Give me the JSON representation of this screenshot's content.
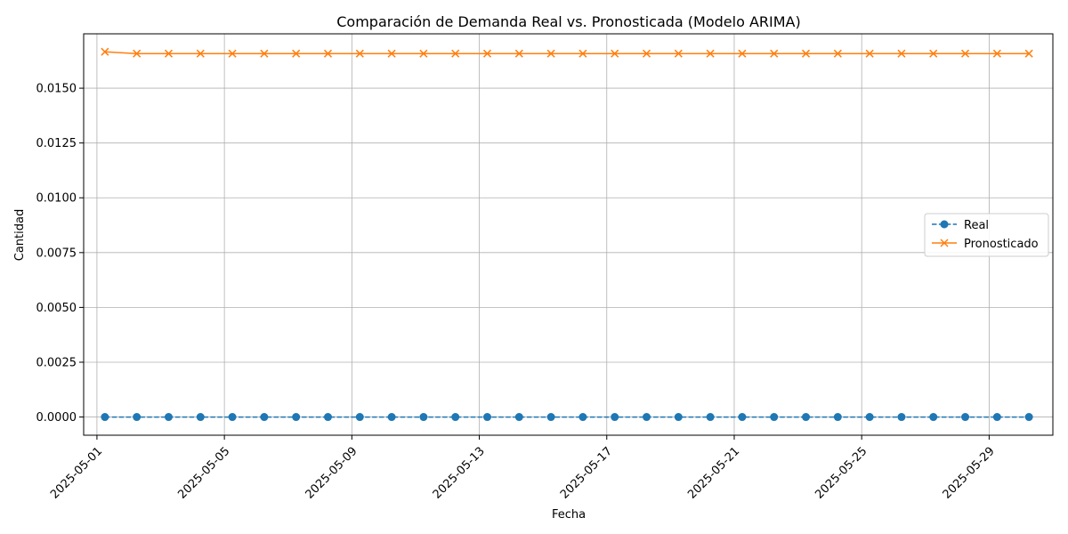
{
  "chart_data": {
    "type": "line",
    "title": "Comparación de Demanda Real vs. Pronosticada (Modelo ARIMA)",
    "xlabel": "Fecha",
    "ylabel": "Cantidad",
    "grid": true,
    "legend_position": "center-right",
    "x": [
      "2025-05-01T06:00",
      "2025-05-02T06:00",
      "2025-05-03T06:00",
      "2025-05-04T06:00",
      "2025-05-05T06:00",
      "2025-05-06T06:00",
      "2025-05-07T06:00",
      "2025-05-08T06:00",
      "2025-05-09T06:00",
      "2025-05-10T06:00",
      "2025-05-11T06:00",
      "2025-05-12T06:00",
      "2025-05-13T06:00",
      "2025-05-14T06:00",
      "2025-05-15T06:00",
      "2025-05-16T06:00",
      "2025-05-17T06:00",
      "2025-05-18T06:00",
      "2025-05-19T06:00",
      "2025-05-20T06:00",
      "2025-05-21T06:00",
      "2025-05-22T06:00",
      "2025-05-23T06:00",
      "2025-05-24T06:00",
      "2025-05-25T06:00",
      "2025-05-26T06:00",
      "2025-05-27T06:00",
      "2025-05-28T06:00",
      "2025-05-29T06:00",
      "2025-05-30T06:00"
    ],
    "x_ticks": [
      "2025-05-01",
      "2025-05-05",
      "2025-05-09",
      "2025-05-13",
      "2025-05-17",
      "2025-05-21",
      "2025-05-25",
      "2025-05-29"
    ],
    "xlim": [
      "2025-04-30T14:00",
      "2025-05-31T00:00"
    ],
    "y_ticks": [
      "0.0000",
      "0.0025",
      "0.0050",
      "0.0075",
      "0.0100",
      "0.0125",
      "0.0150"
    ],
    "ylim": [
      -0.00083,
      0.01748
    ],
    "series": [
      {
        "name": "Real",
        "color": "#1f77b4",
        "line_style": "dashed",
        "marker": "circle",
        "values": [
          0,
          0,
          0,
          0,
          0,
          0,
          0,
          0,
          0,
          0,
          0,
          0,
          0,
          0,
          0,
          0,
          0,
          0,
          0,
          0,
          0,
          0,
          0,
          0,
          0,
          0,
          0,
          0,
          0,
          0
        ]
      },
      {
        "name": "Pronosticado",
        "color": "#ff7f0e",
        "line_style": "solid",
        "marker": "x",
        "values": [
          0.01666,
          0.01658,
          0.01658,
          0.01658,
          0.01658,
          0.01658,
          0.01658,
          0.01658,
          0.01658,
          0.01658,
          0.01658,
          0.01658,
          0.01658,
          0.01658,
          0.01658,
          0.01658,
          0.01658,
          0.01658,
          0.01658,
          0.01658,
          0.01658,
          0.01658,
          0.01658,
          0.01658,
          0.01658,
          0.01658,
          0.01658,
          0.01658,
          0.01658,
          0.01658
        ]
      }
    ]
  }
}
